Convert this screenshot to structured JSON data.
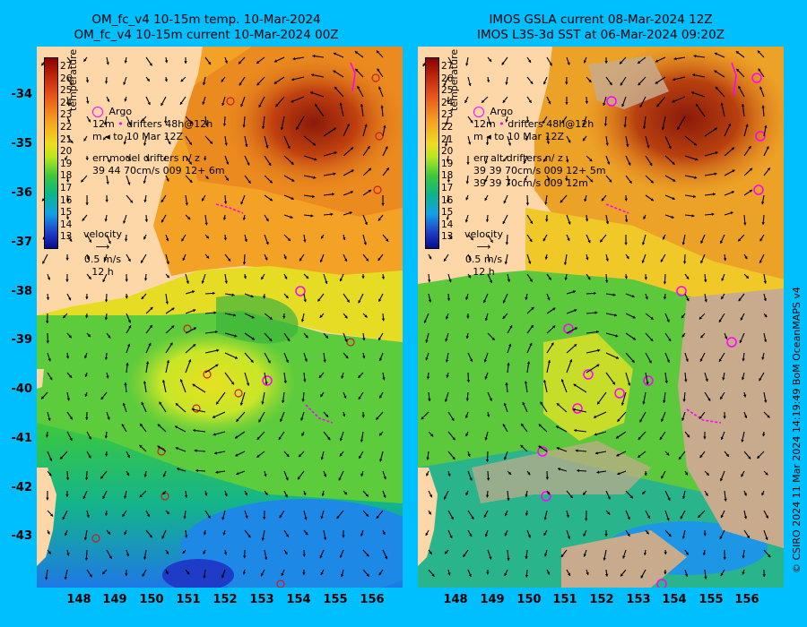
{
  "left_panel": {
    "title_line1": "OM_fc_v4  10-15m temp. 10-Mar-2024",
    "title_line2": "OM_fc_v4  10-15m current 10-Mar-2024 00Z",
    "legend": {
      "argo": "Argo",
      "drifters_line1": "12m",
      "drifters_line2": "drifters 48h@12h",
      "drifters_line3": "m",
      "drifters_line4": "to 10 Mar 12Z",
      "err_line1": "err model drifters n/ z",
      "err_line2": "39 44 70cm/s 009 12+ 6m",
      "velocity_line1": "velocity",
      "velocity_line2": "0.5 m/s",
      "velocity_line3": "12 h"
    }
  },
  "right_panel": {
    "title_line1": "IMOS GSLA current 08-Mar-2024 12Z",
    "title_line2": "IMOS L3S-3d SST at 06-Mar-2024 09:20Z",
    "legend": {
      "argo": "Argo",
      "drifters_line1": "12m",
      "drifters_line2": "drifters 48h@12h",
      "drifters_line3": "m",
      "drifters_line4": "to 10 Mar 12Z",
      "err_line1": "err alt drifters n/ z",
      "err_line2": "39 39 70cm/s 009 12+ 5m",
      "err_line3": "39 39 70cm/s 009 12m",
      "velocity_line1": "velocity",
      "velocity_line2": "0.5 m/s",
      "velocity_line3": "12 h"
    }
  },
  "colorbar": {
    "ticks": [
      "27",
      "26",
      "25",
      "24",
      "23",
      "22",
      "21",
      "20",
      "19",
      "18",
      "17",
      "16",
      "15",
      "14",
      "13"
    ],
    "unit": "temperature (C)"
  },
  "axes": {
    "latitudes": [
      "-34",
      "-35",
      "-36",
      "-37",
      "-38",
      "-39",
      "-40",
      "-41",
      "-42",
      "-43"
    ],
    "longitudes": [
      "148",
      "149",
      "150",
      "151",
      "152",
      "153",
      "154",
      "155",
      "156"
    ]
  },
  "credit": "© CSIRO 2024  11 Mar 2024 14:19:49 BoM OceanMAPS v4",
  "colors": {
    "background": "#00bfff",
    "land": "#fdd7a8",
    "no_data": "#c8aa8c",
    "argo_marker": "#ff00ff",
    "drifter_track": "#ff00ff",
    "argo_float_dot": "#c81e1e"
  }
}
